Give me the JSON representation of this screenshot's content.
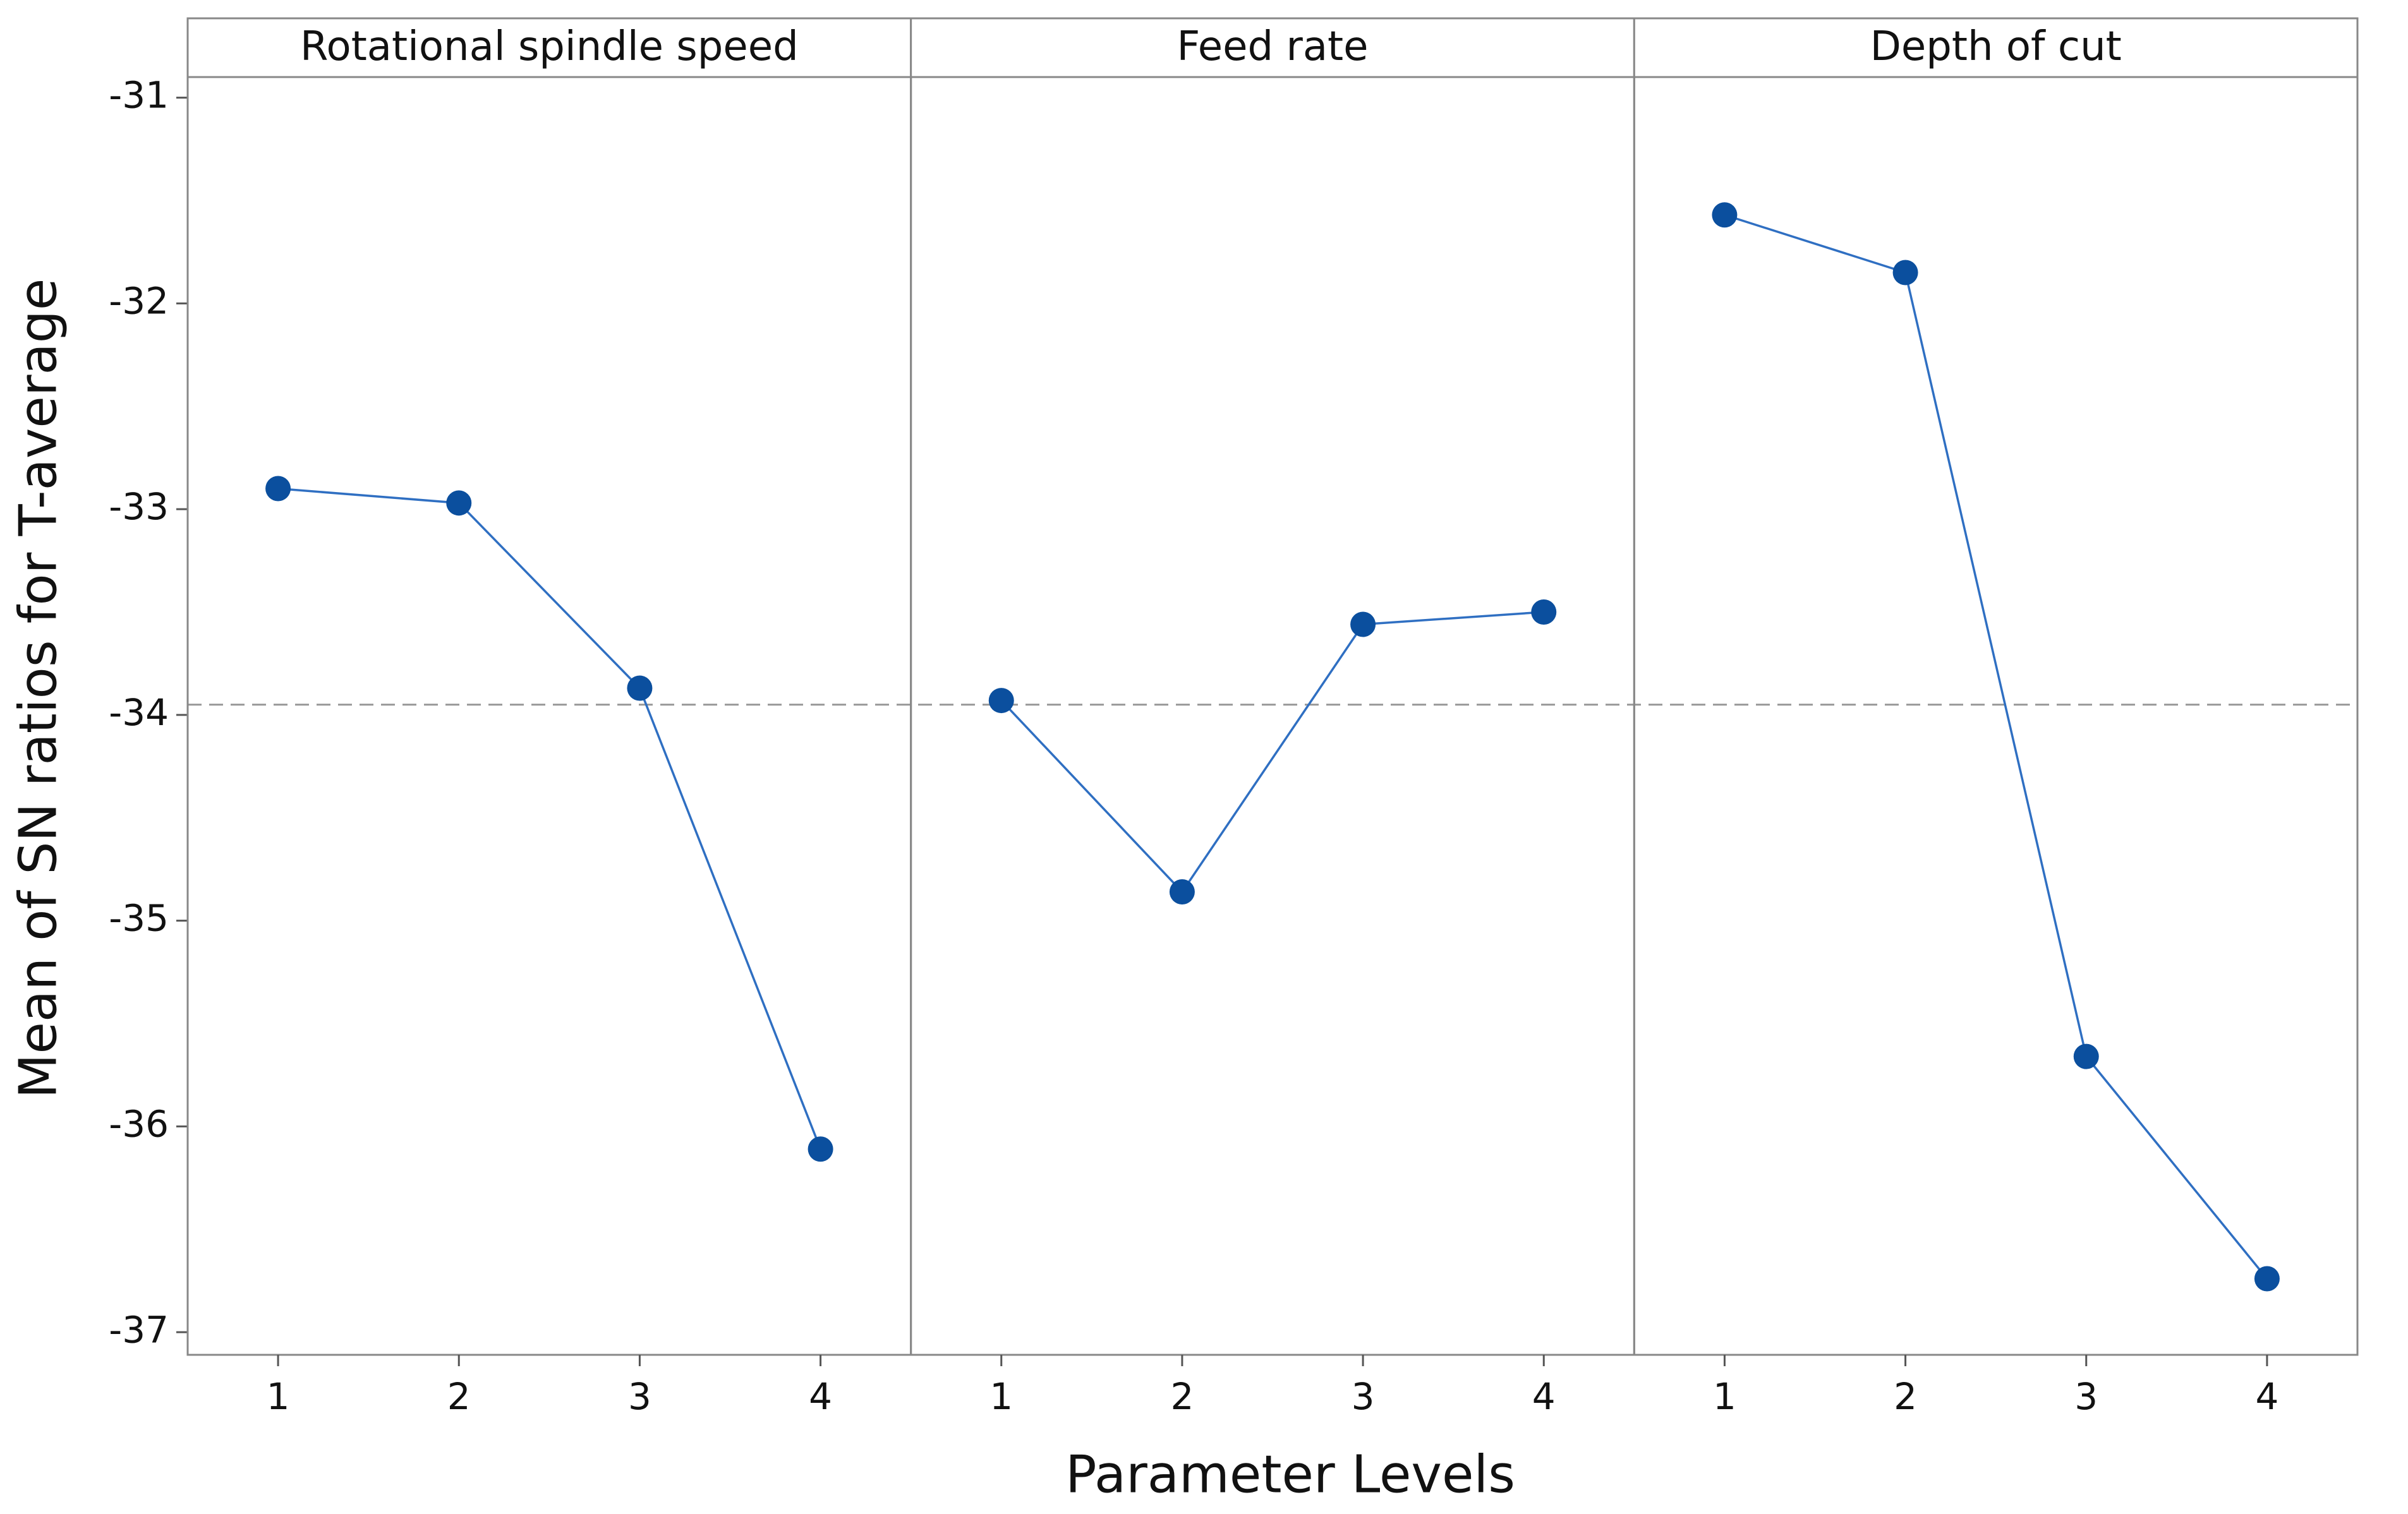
{
  "chart_data": {
    "type": "line",
    "ylabel": "Mean of SN ratios for T-average",
    "xlabel": "Parameter Levels",
    "ylim": [
      -37.11,
      -30.9
    ],
    "yticks": [
      -31,
      -32,
      -33,
      -34,
      -35,
      -36,
      -37
    ],
    "reference_line": -33.95,
    "line_color": "#2f6fc2",
    "marker_color": "#0b4f9e",
    "panels": [
      {
        "title": "Rotational spindle speed",
        "categories": [
          "1",
          "2",
          "3",
          "4"
        ],
        "values": [
          -32.9,
          -32.97,
          -33.87,
          -36.11
        ]
      },
      {
        "title": "Feed rate",
        "categories": [
          "1",
          "2",
          "3",
          "4"
        ],
        "values": [
          -33.93,
          -34.86,
          -33.56,
          -33.5
        ]
      },
      {
        "title": "Depth of cut",
        "categories": [
          "1",
          "2",
          "3",
          "4"
        ],
        "values": [
          -31.57,
          -31.85,
          -35.66,
          -36.74
        ]
      }
    ]
  }
}
